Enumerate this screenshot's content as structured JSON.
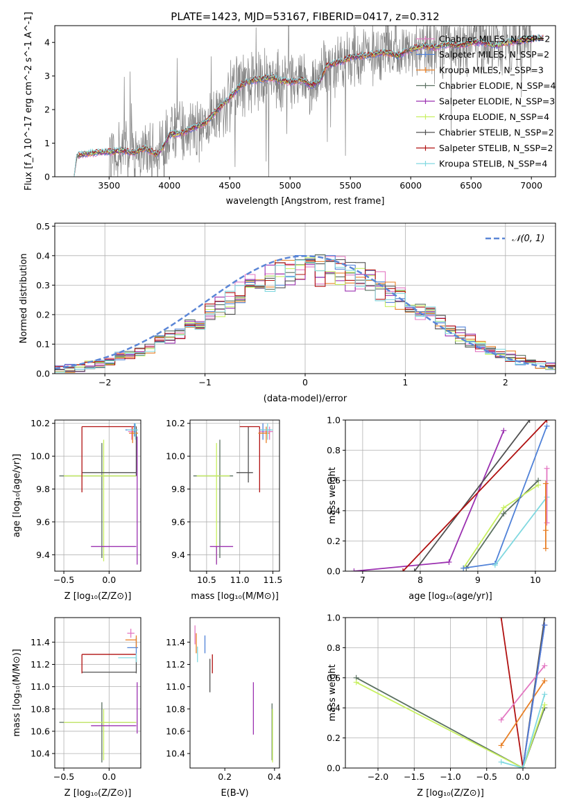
{
  "figure": {
    "title": "PLATE=1423, MJD=53167, FIBERID=0417, z=0.312"
  },
  "series_styles": [
    {
      "name": "Chabrier MILES, N_SSP=2",
      "color": "#e377c2"
    },
    {
      "name": "Salpeter MILES, N_SSP=2",
      "color": "#4f81d8"
    },
    {
      "name": "Kroupa MILES, N_SSP=3",
      "color": "#e87f25"
    },
    {
      "name": "Chabrier ELODIE, N_SSP=4",
      "color": "#5a7060"
    },
    {
      "name": "Salpeter ELODIE, N_SSP=3",
      "color": "#9b30b0"
    },
    {
      "name": "Kroupa ELODIE, N_SSP=4",
      "color": "#c8f060"
    },
    {
      "name": "Chabrier STELIB, N_SSP=2",
      "color": "#505050"
    },
    {
      "name": "Salpeter STELIB, N_SSP=2",
      "color": "#b01010"
    },
    {
      "name": "Kroupa STELIB, N_SSP=4",
      "color": "#80d8e0"
    }
  ],
  "chart_data": [
    {
      "id": "spectrum",
      "type": "line",
      "title": "PLATE=1423, MJD=53167, FIBERID=0417, z=0.312",
      "xlabel": "wavelength [Angstrom, rest frame]",
      "ylabel": "Flux [f_λ 10^-17 erg cm^-2 s^-1 A^-1]",
      "xlim": [
        3050,
        7200
      ],
      "ylim": [
        0,
        4.5
      ],
      "xticks": [
        3500,
        4000,
        4500,
        5000,
        5500,
        6000,
        6500,
        7000
      ],
      "yticks": [
        0,
        1,
        2,
        3,
        4
      ],
      "grid": false,
      "legend": "top-right",
      "continuum": {
        "x": [
          3210,
          3230,
          3300,
          3400,
          3500,
          3600,
          3700,
          3800,
          3900,
          3950,
          4000,
          4100,
          4200,
          4300,
          4400,
          4500,
          4600,
          4700,
          4800,
          4860,
          4900,
          5000,
          5100,
          5175,
          5250,
          5300,
          5400,
          5500,
          5600,
          5700,
          5800,
          5890,
          6000,
          6100,
          6200,
          6300,
          6400,
          6500,
          6600,
          6700,
          6800,
          6900,
          7000,
          7100
        ],
        "y": [
          0.0,
          0.62,
          0.68,
          0.72,
          0.74,
          0.78,
          0.72,
          0.85,
          0.65,
          0.9,
          1.25,
          1.3,
          1.45,
          1.62,
          2.0,
          2.35,
          2.75,
          2.88,
          2.92,
          2.95,
          2.88,
          2.82,
          2.9,
          2.7,
          2.85,
          3.3,
          3.4,
          3.55,
          3.6,
          3.65,
          3.7,
          3.6,
          3.8,
          3.9,
          3.85,
          3.95,
          3.9,
          4.0,
          4.0,
          3.9,
          4.0,
          4.05,
          4.1,
          4.15
        ]
      },
      "data_noise_amplitude": 0.7,
      "data_range": [
        3500,
        7000
      ]
    },
    {
      "id": "residuals",
      "type": "histogram",
      "xlabel": "(data-model)/error",
      "ylabel": "Normed distribution",
      "xlim": [
        -2.5,
        2.5
      ],
      "ylim": [
        0,
        0.51
      ],
      "xticks": [
        -2,
        -1,
        0,
        1,
        2
      ],
      "yticks": [
        0.0,
        0.1,
        0.2,
        0.3,
        0.4,
        0.5
      ],
      "grid": true,
      "legend": "top-right",
      "legend_label": "𝒩(0, 1)",
      "reference_color": "#5b86d6"
    },
    {
      "id": "age-vs-Z",
      "type": "errorbar",
      "xlabel": "Z [log10(Z/Z⊙)]",
      "ylabel": "age  [log10(age/yr)]",
      "xlim": [
        -0.6,
        0.35
      ],
      "ylim": [
        9.3,
        10.22
      ],
      "xticks": [
        -0.5,
        0.0
      ],
      "yticks": [
        9.4,
        9.6,
        9.8,
        10.0,
        10.2
      ],
      "grid": true,
      "points": [
        {
          "color": "#5a7060",
          "x": [
            -0.55,
            0.3
          ],
          "y": [
            9.88,
            9.88
          ],
          "vx": -0.08,
          "vy": [
            9.38,
            10.08
          ]
        },
        {
          "color": "#c8f060",
          "x": [
            -0.5,
            0.3
          ],
          "y": [
            9.88,
            9.88
          ],
          "vx": -0.06,
          "vy": [
            9.36,
            10.1
          ]
        },
        {
          "color": "#505050",
          "x": [
            -0.3,
            0.3
          ],
          "y": [
            9.9,
            9.9
          ],
          "vx": 0.3,
          "vy": [
            9.88,
            10.18
          ]
        },
        {
          "color": "#b01010",
          "x": [
            -0.3,
            0.3
          ],
          "y": [
            10.18,
            10.18
          ],
          "vx": -0.3,
          "vy": [
            9.78,
            10.18
          ]
        },
        {
          "color": "#9b30b0",
          "x": [
            -0.2,
            0.3
          ],
          "y": [
            9.45,
            9.45
          ],
          "vx": 0.31,
          "vy": [
            9.34,
            10.12
          ]
        },
        {
          "color": "#e377c2",
          "x": [
            0.21,
            0.3
          ],
          "y": [
            10.15,
            10.15
          ],
          "vx": 0.25,
          "vy": [
            10.1,
            10.18
          ]
        },
        {
          "color": "#4f81d8",
          "x": [
            0.18,
            0.3
          ],
          "y": [
            10.16,
            10.16
          ],
          "vx": 0.28,
          "vy": [
            10.12,
            10.2
          ]
        },
        {
          "color": "#e87f25",
          "x": [
            0.22,
            0.32
          ],
          "y": [
            10.14,
            10.14
          ],
          "vx": 0.26,
          "vy": [
            10.08,
            10.18
          ]
        },
        {
          "color": "#80d8e0",
          "x": [
            0.2,
            0.32
          ],
          "y": [
            10.16,
            10.16
          ],
          "vx": 0.29,
          "vy": [
            10.1,
            10.2
          ]
        }
      ]
    },
    {
      "id": "age-vs-mass",
      "type": "errorbar",
      "xlabel": "mass [log10(M/M⊙)]",
      "ylabel": "",
      "xlim": [
        10.25,
        11.6
      ],
      "ylim": [
        9.3,
        10.22
      ],
      "xticks": [
        10.5,
        11.0,
        11.5
      ],
      "yticks": [
        9.4,
        9.6,
        9.8,
        10.0,
        10.2
      ],
      "grid": true,
      "points": [
        {
          "color": "#5a7060",
          "x": [
            10.3,
            10.9
          ],
          "y": [
            9.88,
            9.88
          ],
          "vx": 10.7,
          "vy": [
            9.38,
            10.1
          ]
        },
        {
          "color": "#c8f060",
          "x": [
            10.35,
            10.85
          ],
          "y": [
            9.88,
            9.88
          ],
          "vx": 10.65,
          "vy": [
            9.35,
            10.08
          ]
        },
        {
          "color": "#505050",
          "x": [
            10.95,
            11.2
          ],
          "y": [
            9.9,
            9.9
          ],
          "vx": 11.13,
          "vy": [
            9.84,
            10.18
          ]
        },
        {
          "color": "#b01010",
          "x": [
            11.0,
            11.3
          ],
          "y": [
            10.18,
            10.18
          ],
          "vx": 11.3,
          "vy": [
            9.78,
            10.18
          ]
        },
        {
          "color": "#9b30b0",
          "x": [
            10.55,
            10.9
          ],
          "y": [
            9.45,
            9.45
          ],
          "vx": 10.65,
          "vy": [
            9.34,
            9.45
          ]
        },
        {
          "color": "#e377c2",
          "x": [
            11.3,
            11.5
          ],
          "y": [
            10.15,
            10.15
          ],
          "vx": 11.45,
          "vy": [
            10.1,
            10.18
          ]
        },
        {
          "color": "#4f81d8",
          "x": [
            11.3,
            11.48
          ],
          "y": [
            10.16,
            10.16
          ],
          "vx": 11.35,
          "vy": [
            10.1,
            10.2
          ]
        },
        {
          "color": "#e87f25",
          "x": [
            11.28,
            11.45
          ],
          "y": [
            10.14,
            10.14
          ],
          "vx": 11.4,
          "vy": [
            10.08,
            10.18
          ]
        },
        {
          "color": "#80d8e0",
          "x": [
            11.3,
            11.5
          ],
          "y": [
            10.16,
            10.16
          ],
          "vx": 11.42,
          "vy": [
            10.1,
            10.2
          ]
        }
      ]
    },
    {
      "id": "massweight-vs-age",
      "type": "line",
      "xlabel": "age  [log10(age/yr)]",
      "ylabel": "mass weight",
      "xlim": [
        6.7,
        10.35
      ],
      "ylim": [
        0,
        1.0
      ],
      "xticks": [
        7,
        8,
        9,
        10
      ],
      "yticks": [
        0.0,
        0.2,
        0.4,
        0.6,
        0.8,
        1.0
      ],
      "grid": true,
      "series": [
        {
          "color": "#9b30b0",
          "x": [
            6.85,
            8.5,
            9.45
          ],
          "y": [
            0.0,
            0.06,
            0.93
          ]
        },
        {
          "color": "#505050",
          "x": [
            7.9,
            9.9
          ],
          "y": [
            0.0,
            1.0
          ]
        },
        {
          "color": "#b01010",
          "x": [
            7.7,
            10.2
          ],
          "y": [
            0.0,
            1.0
          ]
        },
        {
          "color": "#5a7060",
          "x": [
            8.8,
            9.45,
            10.05
          ],
          "y": [
            0.02,
            0.38,
            0.6
          ]
        },
        {
          "color": "#c8f060",
          "x": [
            8.75,
            9.45,
            10.05
          ],
          "y": [
            0.02,
            0.42,
            0.57
          ]
        },
        {
          "color": "#4f81d8",
          "x": [
            8.75,
            9.3,
            10.2
          ],
          "y": [
            0.02,
            0.05,
            0.96
          ]
        },
        {
          "color": "#80d8e0",
          "x": [
            9.3,
            10.2
          ],
          "y": [
            0.04,
            0.49
          ]
        },
        {
          "color": "#e377c2",
          "x": [
            10.2,
            10.2
          ],
          "y": [
            0.32,
            0.68
          ]
        },
        {
          "color": "#e87f25",
          "x": [
            10.18,
            10.18,
            10.18
          ],
          "y": [
            0.15,
            0.27,
            0.58
          ]
        }
      ]
    },
    {
      "id": "mass-vs-Z",
      "type": "errorbar",
      "xlabel": "Z [log10(Z/Z⊙)]",
      "ylabel": "mass [log10(M/M⊙)]",
      "xlim": [
        -0.6,
        0.35
      ],
      "ylim": [
        10.27,
        11.62
      ],
      "xticks": [
        -0.5,
        0.0
      ],
      "yticks": [
        10.4,
        10.6,
        10.8,
        11.0,
        11.2,
        11.4
      ],
      "grid": true,
      "points": [
        {
          "color": "#5a7060",
          "x": [
            -0.55,
            0.3
          ],
          "y": [
            10.68,
            10.68
          ],
          "vx": -0.08,
          "vy": [
            10.32,
            10.86
          ]
        },
        {
          "color": "#c8f060",
          "x": [
            -0.5,
            0.3
          ],
          "y": [
            10.68,
            10.68
          ],
          "vx": -0.06,
          "vy": [
            10.34,
            10.8
          ]
        },
        {
          "color": "#9b30b0",
          "x": [
            -0.2,
            0.3
          ],
          "y": [
            10.65,
            10.65
          ],
          "vx": 0.31,
          "vy": [
            10.58,
            11.04
          ]
        },
        {
          "color": "#505050",
          "x": [
            -0.3,
            0.3
          ],
          "y": [
            11.13,
            11.13
          ],
          "vx": 0.3,
          "vy": [
            11.12,
            11.26
          ]
        },
        {
          "color": "#b01010",
          "x": [
            -0.3,
            0.3
          ],
          "y": [
            11.29,
            11.29
          ],
          "vx": -0.3,
          "vy": [
            11.12,
            11.29
          ]
        },
        {
          "color": "#e377c2",
          "x": [
            0.2,
            0.28
          ],
          "y": [
            11.48,
            11.48
          ],
          "vx": 0.24,
          "vy": [
            11.44,
            11.52
          ]
        },
        {
          "color": "#4f81d8",
          "x": [
            0.2,
            0.32
          ],
          "y": [
            11.35,
            11.35
          ],
          "vx": 0.3,
          "vy": [
            11.26,
            11.44
          ]
        },
        {
          "color": "#e87f25",
          "x": [
            0.18,
            0.3
          ],
          "y": [
            11.42,
            11.42
          ],
          "vx": 0.3,
          "vy": [
            11.35,
            11.46
          ]
        },
        {
          "color": "#80d8e0",
          "x": [
            0.1,
            0.3
          ],
          "y": [
            11.26,
            11.26
          ],
          "vx": 0.3,
          "vy": [
            11.22,
            11.3
          ]
        }
      ]
    },
    {
      "id": "mass-vs-ebv",
      "type": "errorbar",
      "xlabel": "E(B-V)",
      "ylabel": "",
      "xlim": [
        0.06,
        0.42
      ],
      "ylim": [
        10.27,
        11.62
      ],
      "xticks": [
        0.2,
        0.4
      ],
      "yticks": [
        10.4,
        10.6,
        10.8,
        11.0,
        11.2,
        11.4
      ],
      "grid": false,
      "points": [
        {
          "color": "#5a7060",
          "vx": 0.39,
          "vy": [
            10.34,
            10.85
          ]
        },
        {
          "color": "#c8f060",
          "vx": 0.392,
          "vy": [
            10.32,
            10.8
          ]
        },
        {
          "color": "#9b30b0",
          "vx": 0.315,
          "vy": [
            10.57,
            11.04
          ]
        },
        {
          "color": "#505050",
          "vx": 0.14,
          "vy": [
            10.95,
            11.25
          ]
        },
        {
          "color": "#b01010",
          "vx": 0.15,
          "vy": [
            11.12,
            11.29
          ]
        },
        {
          "color": "#e377c2",
          "vx": 0.08,
          "vy": [
            11.38,
            11.55
          ]
        },
        {
          "color": "#4f81d8",
          "vx": 0.12,
          "vy": [
            11.3,
            11.46
          ]
        },
        {
          "color": "#e87f25",
          "vx": 0.085,
          "vy": [
            11.3,
            11.48
          ]
        },
        {
          "color": "#80d8e0",
          "vx": 0.09,
          "vy": [
            11.22,
            11.36
          ]
        }
      ]
    },
    {
      "id": "massweight-vs-Z",
      "type": "line",
      "xlabel": "Z [log10(Z/Z⊙)]",
      "ylabel": "mass weight",
      "xlim": [
        -2.45,
        0.45
      ],
      "ylim": [
        0,
        1.0
      ],
      "xticks": [
        -2.0,
        -1.5,
        -1.0,
        -0.5,
        0.0
      ],
      "yticks": [
        0.0,
        0.2,
        0.4,
        0.6,
        0.8,
        1.0
      ],
      "grid": true,
      "series": [
        {
          "color": "#5a7060",
          "x": [
            -2.3,
            0.0,
            0.3
          ],
          "y": [
            0.6,
            0.0,
            0.4
          ]
        },
        {
          "color": "#c8f060",
          "x": [
            -2.3,
            0.0,
            0.3
          ],
          "y": [
            0.57,
            0.0,
            0.42
          ]
        },
        {
          "color": "#b01010",
          "x": [
            -0.3,
            0.0
          ],
          "y": [
            1.0,
            0.0
          ]
        },
        {
          "color": "#505050",
          "x": [
            0.0,
            0.3
          ],
          "y": [
            0.0,
            1.0
          ]
        },
        {
          "color": "#9b30b0",
          "x": [
            0.0,
            0.3
          ],
          "y": [
            0.0,
            0.95
          ]
        },
        {
          "color": "#e377c2",
          "x": [
            -0.3,
            0.3
          ],
          "y": [
            0.32,
            0.68
          ]
        },
        {
          "color": "#e87f25",
          "x": [
            -0.3,
            0.3
          ],
          "y": [
            0.15,
            0.58
          ]
        },
        {
          "color": "#4f81d8",
          "x": [
            0.0,
            0.3
          ],
          "y": [
            0.0,
            0.95
          ]
        },
        {
          "color": "#80d8e0",
          "x": [
            -0.3,
            0.0,
            0.3
          ],
          "y": [
            0.04,
            0.0,
            0.49
          ]
        }
      ]
    }
  ]
}
